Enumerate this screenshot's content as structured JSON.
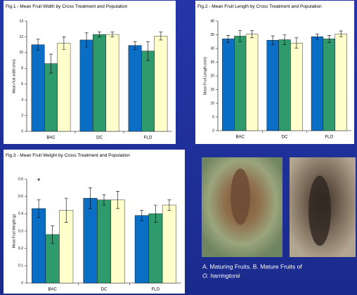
{
  "chart_data": [
    {
      "type": "bar",
      "title": "Fig.1 - Mean Fruit Width by Cross Treatment and Population",
      "y_label": "Mean fruit width (mm)",
      "categories": [
        "BAC",
        "DC",
        "FLO"
      ],
      "series": [
        {
          "color": "#0a6fc4",
          "values": [
            11.0,
            11.6,
            10.9
          ],
          "errors": [
            0.7,
            0.9,
            0.5
          ]
        },
        {
          "color": "#2f9a6c",
          "values": [
            8.6,
            12.3,
            10.2
          ],
          "errors": [
            1.2,
            0.3,
            1.2
          ]
        },
        {
          "color": "#ffffcc",
          "values": [
            11.2,
            12.3,
            12.1
          ],
          "errors": [
            0.8,
            0.3,
            0.5
          ]
        }
      ],
      "ylim": [
        0,
        14
      ],
      "yticks": [
        0,
        2,
        4,
        6,
        8,
        10,
        12,
        14
      ],
      "grid": false
    },
    {
      "type": "bar",
      "title": "Fig.2 - Mean Fruit Length by Cross Treatment and Population",
      "y_label": "Mean Fruit Length (mm)",
      "categories": [
        "BAC",
        "DC",
        "FLO"
      ],
      "series": [
        {
          "color": "#0a6fc4",
          "values": [
            33.5,
            33.0,
            34.3
          ],
          "errors": [
            1.3,
            1.6,
            1.0
          ]
        },
        {
          "color": "#2f9a6c",
          "values": [
            34.5,
            33.2,
            33.5
          ],
          "errors": [
            2.0,
            1.8,
            1.3
          ]
        },
        {
          "color": "#ffffcc",
          "values": [
            35.2,
            32.0,
            35.3
          ],
          "errors": [
            1.3,
            1.9,
            1.1
          ]
        }
      ],
      "ylim": [
        0,
        40
      ],
      "yticks": [
        0,
        5,
        10,
        15,
        20,
        25,
        30,
        35,
        40
      ],
      "grid": false
    },
    {
      "type": "bar",
      "title": "Fig.3 - Mean Fruit Weight by Cross Treatment and Population",
      "y_label": "Mean Fruit Weight (g)",
      "annotation": "*",
      "categories": [
        "BAC",
        "DC",
        "FLO"
      ],
      "series": [
        {
          "color": "#0a6fc4",
          "values": [
            0.43,
            0.49,
            0.39
          ],
          "errors": [
            0.05,
            0.06,
            0.03
          ]
        },
        {
          "color": "#2f9a6c",
          "values": [
            0.28,
            0.48,
            0.4
          ],
          "errors": [
            0.05,
            0.03,
            0.05
          ]
        },
        {
          "color": "#ffffcc",
          "values": [
            0.42,
            0.48,
            0.45
          ],
          "errors": [
            0.07,
            0.05,
            0.03
          ]
        }
      ],
      "ylim": [
        0,
        0.6
      ],
      "yticks": [
        0,
        0.1,
        0.2,
        0.3,
        0.4,
        0.5,
        0.6
      ],
      "grid": false
    }
  ],
  "caption": {
    "text": "A. Maturing Fruits. B. Mature Fruits of",
    "species": "O. harringtonii"
  }
}
